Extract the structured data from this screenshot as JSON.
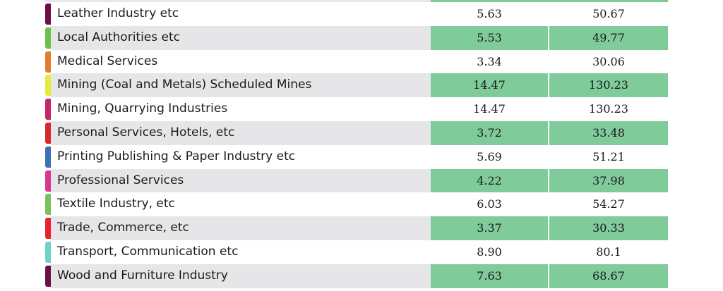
{
  "rows": [
    {
      "name": "Leather Industry etc",
      "v1": "5.63",
      "v2": "50.67",
      "color": "#6b1048",
      "shaded": false
    },
    {
      "name": "Local Authorities etc",
      "v1": "5.53",
      "v2": "49.77",
      "color": "#6ebf4b",
      "shaded": true
    },
    {
      "name": "Medical Services",
      "v1": "3.34",
      "v2": "30.06",
      "color": "#e87a2a",
      "shaded": false
    },
    {
      "name": "Mining (Coal and Metals) Scheduled Mines",
      "v1": "14.47",
      "v2": "130.23",
      "color": "#e6ea3a",
      "shaded": true
    },
    {
      "name": "Mining, Quarrying Industries",
      "v1": "14.47",
      "v2": "130.23",
      "color": "#c8246a",
      "shaded": false
    },
    {
      "name": "Personal Services, Hotels, etc",
      "v1": "3.72",
      "v2": "33.48",
      "color": "#d62a2a",
      "shaded": true
    },
    {
      "name": "Printing Publishing & Paper Industry etc",
      "v1": "5.69",
      "v2": "51.21",
      "color": "#3b6fb6",
      "shaded": false
    },
    {
      "name": "Professional Services",
      "v1": "4.22",
      "v2": "37.98",
      "color": "#d63a8e",
      "shaded": true
    },
    {
      "name": "Textile Industry, etc",
      "v1": "6.03",
      "v2": "54.27",
      "color": "#7cc25a",
      "shaded": false
    },
    {
      "name": "Trade, Commerce, etc",
      "v1": "3.37",
      "v2": "30.33",
      "color": "#e8232e",
      "shaded": true
    },
    {
      "name": "Transport, Communication etc",
      "v1": "8.90",
      "v2": "80.1",
      "color": "#6fd0cc",
      "shaded": false
    },
    {
      "name": "Wood and Furniture Industry",
      "v1": "7.63",
      "v2": "68.67",
      "color": "#6b1048",
      "shaded": true
    }
  ]
}
